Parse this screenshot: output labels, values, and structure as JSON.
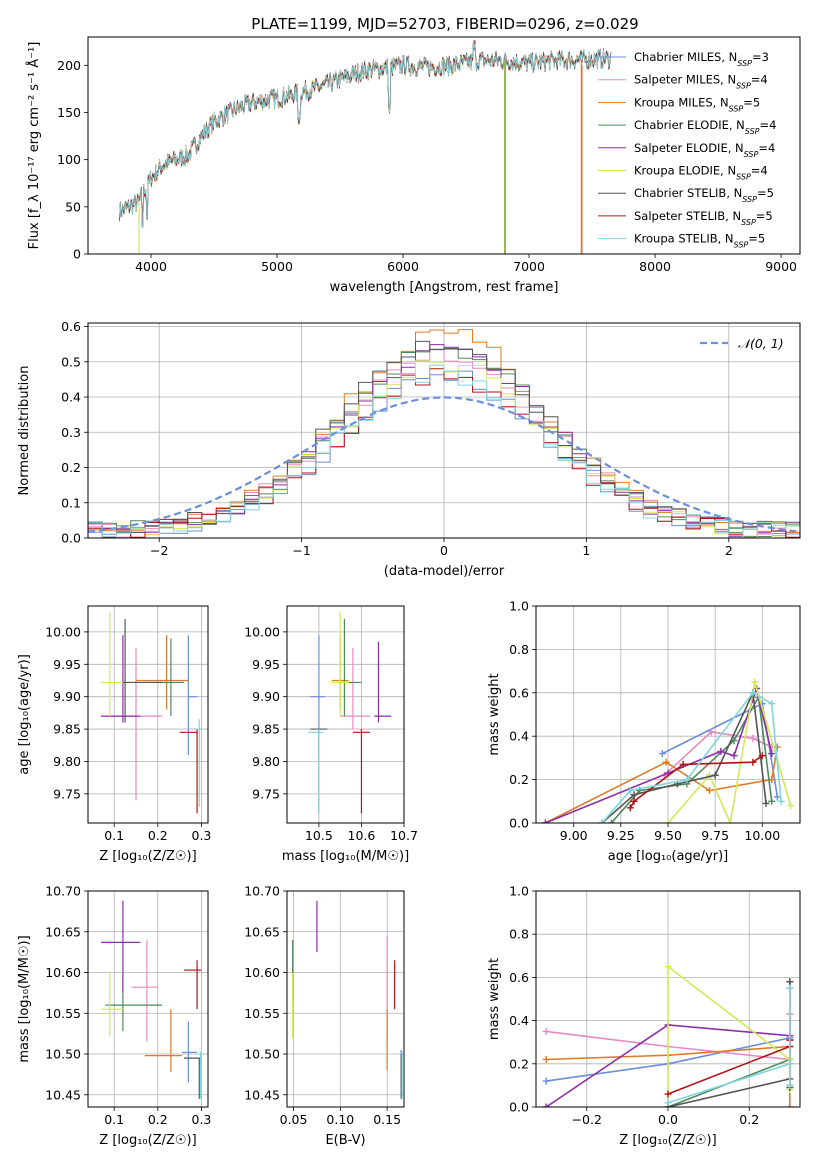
{
  "figure": {
    "title": "PLATE=1199, MJD=52703, FIBERID=0296, z=0.029",
    "series_colors": [
      "#6b8fd9",
      "#e68ac3",
      "#e07b27",
      "#4f8a5b",
      "#8c2fa8",
      "#d4e85a",
      "#555555",
      "#b01515",
      "#7fd6dc"
    ]
  },
  "chart_data": [
    {
      "id": "spectrum",
      "type": "line",
      "xlabel": "wavelength [Angstrom, rest frame]",
      "ylabel": "Flux [f_λ 10⁻¹⁷ erg cm⁻² s⁻¹ Å⁻¹]",
      "xlim": [
        3500,
        9150
      ],
      "ylim": [
        0,
        230
      ],
      "xticks": [
        4000,
        5000,
        6000,
        7000,
        8000,
        9000
      ],
      "yticks": [
        0,
        50,
        100,
        150,
        200
      ],
      "grid": false,
      "legend_position": "upper-right",
      "wavelength_range": [
        3750,
        7650
      ],
      "continuum_points": [
        [
          3750,
          45
        ],
        [
          3900,
          55
        ],
        [
          4000,
          80
        ],
        [
          4100,
          95
        ],
        [
          4200,
          100
        ],
        [
          4300,
          105
        ],
        [
          4400,
          125
        ],
        [
          4500,
          140
        ],
        [
          4600,
          148
        ],
        [
          4700,
          155
        ],
        [
          4800,
          160
        ],
        [
          4900,
          163
        ],
        [
          5000,
          165
        ],
        [
          5100,
          168
        ],
        [
          5200,
          172
        ],
        [
          5300,
          175
        ],
        [
          5400,
          180
        ],
        [
          5500,
          185
        ],
        [
          5600,
          190
        ],
        [
          5700,
          195
        ],
        [
          5800,
          196
        ],
        [
          5900,
          198
        ],
        [
          6000,
          200
        ],
        [
          6200,
          198
        ],
        [
          6400,
          200
        ],
        [
          6600,
          205
        ],
        [
          6800,
          205
        ],
        [
          7000,
          202
        ],
        [
          7200,
          205
        ],
        [
          7400,
          206
        ],
        [
          7600,
          207
        ]
      ],
      "series": [
        {
          "name": "Chabrier MILES",
          "nssp": "3"
        },
        {
          "name": "Salpeter MILES",
          "nssp": "4"
        },
        {
          "name": "Kroupa MILES",
          "nssp": "5"
        },
        {
          "name": "Chabrier ELODIE",
          "nssp": "4"
        },
        {
          "name": "Salpeter ELODIE",
          "nssp": "4"
        },
        {
          "name": "Kroupa ELODIE",
          "nssp": "4"
        },
        {
          "name": "Chabrier STELIB",
          "nssp": "5"
        },
        {
          "name": "Salpeter STELIB",
          "nssp": "5"
        },
        {
          "name": "Kroupa STELIB",
          "nssp": "5"
        }
      ]
    },
    {
      "id": "residuals",
      "type": "line",
      "xlabel": "(data-model)/error",
      "ylabel": "Normed distribution",
      "xlim": [
        -2.5,
        2.5
      ],
      "ylim": [
        0,
        0.61
      ],
      "xticks": [
        -2,
        -1,
        0,
        1,
        2
      ],
      "yticks": [
        0.0,
        0.1,
        0.2,
        0.3,
        0.4,
        0.5,
        0.6
      ],
      "grid": true,
      "legend_position": "upper-right",
      "reference_curve": {
        "name": "𝒩(0, 1)",
        "style": "dashed"
      },
      "bin_width": 0.1
    },
    {
      "id": "z-vs-age",
      "type": "scatter",
      "xlabel": "Z [log₁₀(Z/Z☉)]",
      "ylabel": "age  [log₁₀(age/yr)]",
      "xlim": [
        0.04,
        0.315
      ],
      "ylim": [
        9.705,
        10.04
      ],
      "xticks": [
        0.1,
        0.2,
        0.3
      ],
      "yticks": [
        9.75,
        9.8,
        9.85,
        9.9,
        9.95,
        10.0
      ],
      "grid": true,
      "points": [
        {
          "x": 0.27,
          "y": 9.9,
          "xerr": [
            0.27,
            0.29
          ],
          "yerr": [
            9.81,
            9.995
          ]
        },
        {
          "x": 0.15,
          "y": 9.87,
          "xerr": [
            0.07,
            0.21
          ],
          "yerr": [
            9.74,
            9.975
          ]
        },
        {
          "x": 0.22,
          "y": 9.925,
          "xerr": [
            0.15,
            0.27
          ],
          "yerr": [
            9.88,
            9.995
          ]
        },
        {
          "x": 0.23,
          "y": 9.922,
          "xerr": [
            0.17,
            0.26
          ],
          "yerr": [
            9.87,
            9.99
          ]
        },
        {
          "x": 0.12,
          "y": 9.87,
          "xerr": [
            0.07,
            0.16
          ],
          "yerr": [
            9.86,
            9.995
          ]
        },
        {
          "x": 0.09,
          "y": 9.922,
          "xerr": [
            0.07,
            0.16
          ],
          "yerr": [
            9.87,
            10.03
          ]
        },
        {
          "x": 0.125,
          "y": 9.922,
          "xerr": [
            0.12,
            0.21
          ],
          "yerr": [
            9.86,
            10.02
          ]
        },
        {
          "x": 0.29,
          "y": 9.845,
          "xerr": [
            0.25,
            0.29
          ],
          "yerr": [
            9.72,
            9.85
          ]
        },
        {
          "x": 0.295,
          "y": 9.85,
          "xerr": [
            0.28,
            0.3
          ],
          "yerr": [
            9.73,
            9.865
          ]
        }
      ]
    },
    {
      "id": "mass-vs-age",
      "type": "scatter",
      "xlabel": "mass [log₁₀(M/M☉)]",
      "ylabel": "",
      "xlim": [
        10.425,
        10.7
      ],
      "ylim": [
        9.705,
        10.04
      ],
      "xticks": [
        10.5,
        10.6,
        10.7
      ],
      "yticks": [
        9.75,
        9.8,
        9.85,
        9.9,
        9.95,
        10.0
      ],
      "grid": true,
      "points": [
        {
          "x": 10.5,
          "y": 9.9,
          "xerr": [
            10.48,
            10.515
          ],
          "yerr": [
            9.81,
            9.995
          ]
        },
        {
          "x": 10.58,
          "y": 9.87,
          "xerr": [
            10.55,
            10.62
          ],
          "yerr": [
            9.85,
            9.975
          ]
        },
        {
          "x": 10.55,
          "y": 9.925,
          "xerr": [
            10.53,
            10.57
          ],
          "yerr": [
            9.88,
            9.995
          ]
        },
        {
          "x": 10.56,
          "y": 9.922,
          "xerr": [
            10.55,
            10.6
          ],
          "yerr": [
            9.87,
            10.02
          ]
        },
        {
          "x": 10.64,
          "y": 9.87,
          "xerr": [
            10.63,
            10.67
          ],
          "yerr": [
            9.86,
            9.985
          ]
        },
        {
          "x": 10.55,
          "y": 9.922,
          "xerr": [
            10.53,
            10.57
          ],
          "yerr": [
            9.87,
            10.03
          ]
        },
        {
          "x": 10.5,
          "y": 9.85,
          "xerr": [
            10.48,
            10.52
          ],
          "yerr": [
            9.72,
            9.85
          ]
        },
        {
          "x": 10.6,
          "y": 9.845,
          "xerr": [
            10.58,
            10.62
          ],
          "yerr": [
            9.72,
            9.85
          ]
        },
        {
          "x": 10.5,
          "y": 9.845,
          "xerr": [
            10.475,
            10.51
          ],
          "yerr": [
            9.72,
            9.85
          ]
        }
      ]
    },
    {
      "id": "age-vs-weight",
      "type": "line",
      "xlabel": "age  [log₁₀(age/yr)]",
      "ylabel": "mass weight",
      "xlim": [
        8.8,
        10.2
      ],
      "ylim": [
        0,
        1
      ],
      "xticks": [
        9.0,
        9.25,
        9.5,
        9.75,
        10.0
      ],
      "yticks": [
        0.0,
        0.2,
        0.4,
        0.6,
        0.8,
        1.0
      ],
      "grid": true,
      "series": [
        {
          "x": [
            9.47,
            10.0,
            10.08
          ],
          "y": [
            0.32,
            0.55,
            0.12
          ]
        },
        {
          "x": [
            9.48,
            9.73,
            9.95,
            10.05
          ],
          "y": [
            0.22,
            0.42,
            0.39,
            0.35
          ]
        },
        {
          "x": [
            8.85,
            9.49,
            9.72,
            10.05,
            10.08
          ],
          "y": [
            0.0,
            0.28,
            0.15,
            0.2,
            0.35
          ]
        },
        {
          "x": [
            9.2,
            9.35,
            9.6,
            9.85,
            9.98,
            10.05
          ],
          "y": [
            0.0,
            0.15,
            0.18,
            0.38,
            0.58,
            0.1
          ]
        },
        {
          "x": [
            8.85,
            9.5,
            9.78,
            9.85,
            9.97,
            10.05
          ],
          "y": [
            0.0,
            0.23,
            0.33,
            0.31,
            0.62,
            0.32
          ]
        },
        {
          "x": [
            9.5,
            9.72,
            9.83,
            9.96,
            10.15
          ],
          "y": [
            0.0,
            0.22,
            0.0,
            0.65,
            0.08
          ]
        },
        {
          "x": [
            9.15,
            9.32,
            9.55,
            9.75,
            9.95,
            10.02
          ],
          "y": [
            0.0,
            0.13,
            0.18,
            0.22,
            0.6,
            0.09
          ]
        },
        {
          "x": [
            9.3,
            9.32,
            9.58,
            9.95,
            10.0
          ],
          "y": [
            0.07,
            0.1,
            0.27,
            0.28,
            0.31
          ]
        },
        {
          "x": [
            9.15,
            9.3,
            9.6,
            9.95,
            10.05,
            10.1
          ],
          "y": [
            0.0,
            0.15,
            0.2,
            0.6,
            0.55,
            0.1
          ]
        }
      ]
    },
    {
      "id": "z-vs-mass",
      "type": "scatter",
      "xlabel": "Z [log₁₀(Z/Z☉)]",
      "ylabel": "mass [log₁₀(M/M☉)]",
      "xlim": [
        0.04,
        0.315
      ],
      "ylim": [
        10.435,
        10.7
      ],
      "xticks": [
        0.1,
        0.2,
        0.3
      ],
      "yticks": [
        10.45,
        10.5,
        10.55,
        10.6,
        10.65,
        10.7
      ],
      "grid": true,
      "points": [
        {
          "x": 0.27,
          "y": 10.502,
          "xerr": [
            0.255,
            0.29
          ],
          "yerr": [
            10.465,
            10.54
          ]
        },
        {
          "x": 0.175,
          "y": 10.582,
          "xerr": [
            0.14,
            0.2
          ],
          "yerr": [
            10.515,
            10.64
          ]
        },
        {
          "x": 0.23,
          "y": 10.498,
          "xerr": [
            0.17,
            0.255
          ],
          "yerr": [
            10.478,
            10.555
          ]
        },
        {
          "x": 0.12,
          "y": 10.56,
          "xerr": [
            0.08,
            0.21
          ],
          "yerr": [
            10.528,
            10.6
          ]
        },
        {
          "x": 0.12,
          "y": 10.637,
          "xerr": [
            0.07,
            0.16
          ],
          "yerr": [
            10.575,
            10.688
          ]
        },
        {
          "x": 0.09,
          "y": 10.555,
          "xerr": [
            0.07,
            0.12
          ],
          "yerr": [
            10.522,
            10.6
          ]
        },
        {
          "x": 0.295,
          "y": 10.495,
          "xerr": [
            0.26,
            0.3
          ],
          "yerr": [
            10.445,
            10.495
          ]
        },
        {
          "x": 0.29,
          "y": 10.603,
          "xerr": [
            0.26,
            0.3
          ],
          "yerr": [
            10.555,
            10.615
          ]
        },
        {
          "x": 0.298,
          "y": 10.5,
          "xerr": [
            0.29,
            0.305
          ],
          "yerr": [
            10.445,
            10.503
          ]
        }
      ]
    },
    {
      "id": "ebv-vs-mass",
      "type": "scatter",
      "xlabel": "E(B-V)",
      "ylabel": "",
      "xlim": [
        0.043,
        0.168
      ],
      "ylim": [
        10.435,
        10.7
      ],
      "xticks": [
        0.05,
        0.1,
        0.15
      ],
      "yticks": [
        10.45,
        10.5,
        10.55,
        10.6,
        10.65,
        10.7
      ],
      "grid": true,
      "points": [
        {
          "x": 0.165,
          "yerr": [
            10.445,
            10.505
          ]
        },
        {
          "x": 0.15,
          "yerr": [
            10.52,
            10.645
          ]
        },
        {
          "x": 0.15,
          "yerr": [
            10.48,
            10.555
          ]
        },
        {
          "x": 0.049,
          "yerr": [
            10.565,
            10.64
          ]
        },
        {
          "x": 0.075,
          "yerr": [
            10.625,
            10.688
          ]
        },
        {
          "x": 0.049,
          "yerr": [
            10.52,
            10.6
          ]
        },
        {
          "x": 0.165,
          "yerr": [
            10.445,
            10.5
          ]
        },
        {
          "x": 0.158,
          "yerr": [
            10.555,
            10.615
          ]
        },
        {
          "x": 0.166,
          "yerr": [
            10.445,
            10.503
          ]
        }
      ]
    },
    {
      "id": "z-vs-weight",
      "type": "line",
      "xlabel": "Z [log₁₀(Z/Z☉)]",
      "ylabel": "mass weight",
      "xlim": [
        -0.325,
        0.325
      ],
      "ylim": [
        0,
        1
      ],
      "xticks": [
        -0.2,
        0.0,
        0.2
      ],
      "yticks": [
        0.0,
        0.2,
        0.4,
        0.6,
        0.8,
        1.0
      ],
      "grid": true,
      "series": [
        {
          "x": [
            -0.3,
            0.0,
            0.3,
            0.3
          ],
          "y": [
            0.12,
            0.2,
            0.32,
            0.55
          ]
        },
        {
          "x": [
            -0.3,
            0.0,
            0.3,
            0.3
          ],
          "y": [
            0.35,
            0.28,
            0.22,
            0.43
          ]
        },
        {
          "x": [
            -0.3,
            0.0,
            0.3,
            0.3,
            0.3
          ],
          "y": [
            0.22,
            0.24,
            0.28,
            0.0,
            0.2
          ]
        },
        {
          "x": [
            0.0,
            0.3,
            0.3,
            0.3
          ],
          "y": [
            0.0,
            0.22,
            0.58,
            0.1
          ]
        },
        {
          "x": [
            -0.3,
            0.0,
            0.3,
            0.3
          ],
          "y": [
            0.0,
            0.38,
            0.33,
            0.31
          ]
        },
        {
          "x": [
            0.0,
            0.0,
            0.3,
            0.3
          ],
          "y": [
            0.0,
            0.65,
            0.22,
            0.08
          ]
        },
        {
          "x": [
            0.0,
            0.3,
            0.3,
            0.3
          ],
          "y": [
            0.0,
            0.13,
            0.58,
            0.09
          ]
        },
        {
          "x": [
            0.0,
            0.3,
            0.3
          ],
          "y": [
            0.06,
            0.28,
            0.31
          ]
        },
        {
          "x": [
            0.0,
            0.3,
            0.3,
            0.3
          ],
          "y": [
            0.02,
            0.2,
            0.55,
            0.1
          ]
        }
      ]
    }
  ]
}
